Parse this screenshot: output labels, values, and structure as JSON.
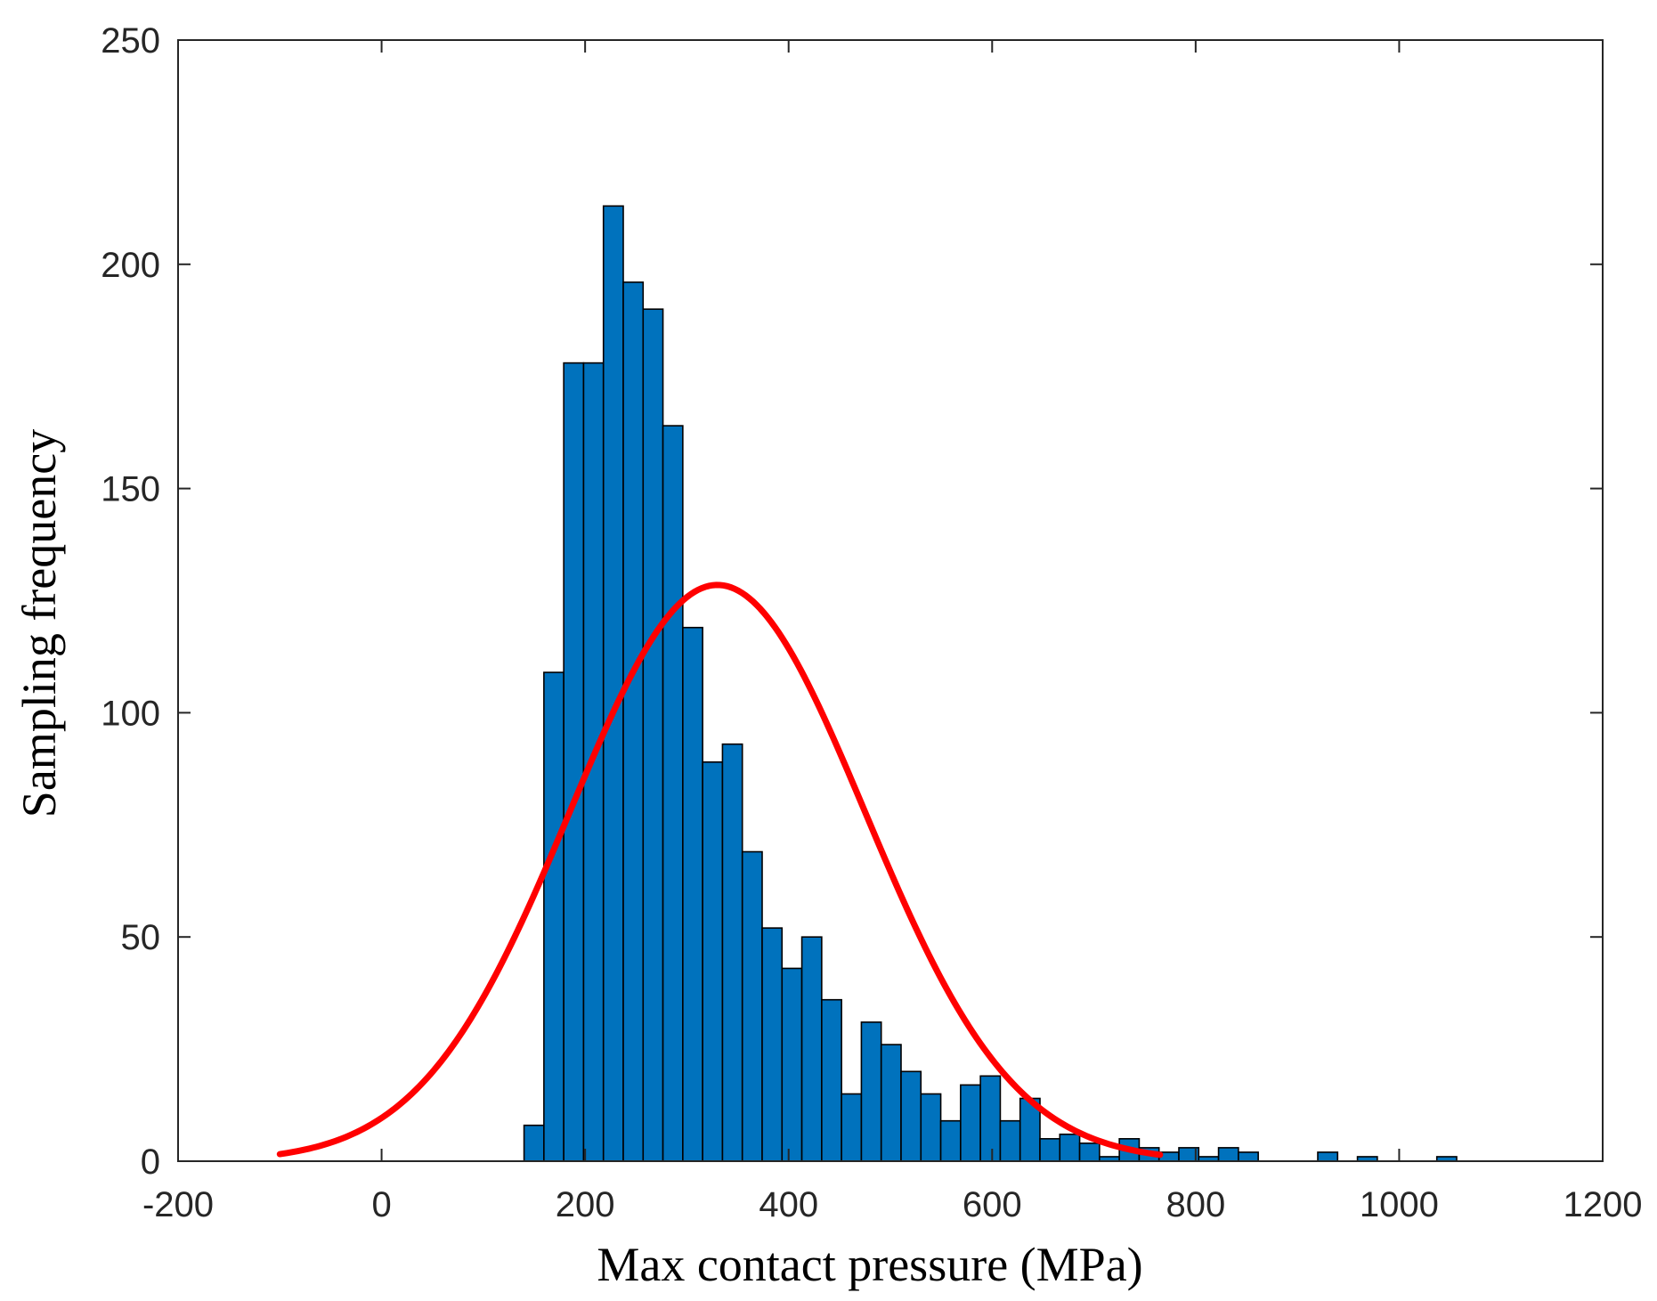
{
  "chart_data": {
    "type": "bar",
    "title": "",
    "xlabel": "Max contact pressure (MPa)",
    "ylabel": "Sampling frequency",
    "xlim": [
      -200,
      1200
    ],
    "ylim": [
      0,
      250
    ],
    "xticks": [
      -200,
      0,
      200,
      400,
      600,
      800,
      1000,
      1200
    ],
    "yticks": [
      0,
      50,
      100,
      150,
      200,
      250
    ],
    "grid": false,
    "legend": "none",
    "colors": {
      "bars": "#0072BD",
      "bar_edge": "#000000",
      "fit_curve": "#FF0000",
      "axes": "#262626"
    },
    "bins": {
      "start": 140,
      "width": 19.5,
      "counts": [
        8,
        109,
        178,
        178,
        213,
        196,
        190,
        164,
        119,
        89,
        93,
        69,
        52,
        43,
        50,
        36,
        15,
        31,
        26,
        20,
        15,
        9,
        17,
        19,
        9,
        14,
        5,
        6,
        4,
        1,
        5,
        3,
        2,
        3,
        1,
        3,
        2,
        0,
        0,
        0,
        2,
        0,
        1,
        0,
        0,
        0,
        1
      ]
    },
    "fit_curve": {
      "type": "normal",
      "mean": 330,
      "std": 145,
      "peak": 128.5,
      "x_range": [
        -100,
        765
      ]
    }
  }
}
